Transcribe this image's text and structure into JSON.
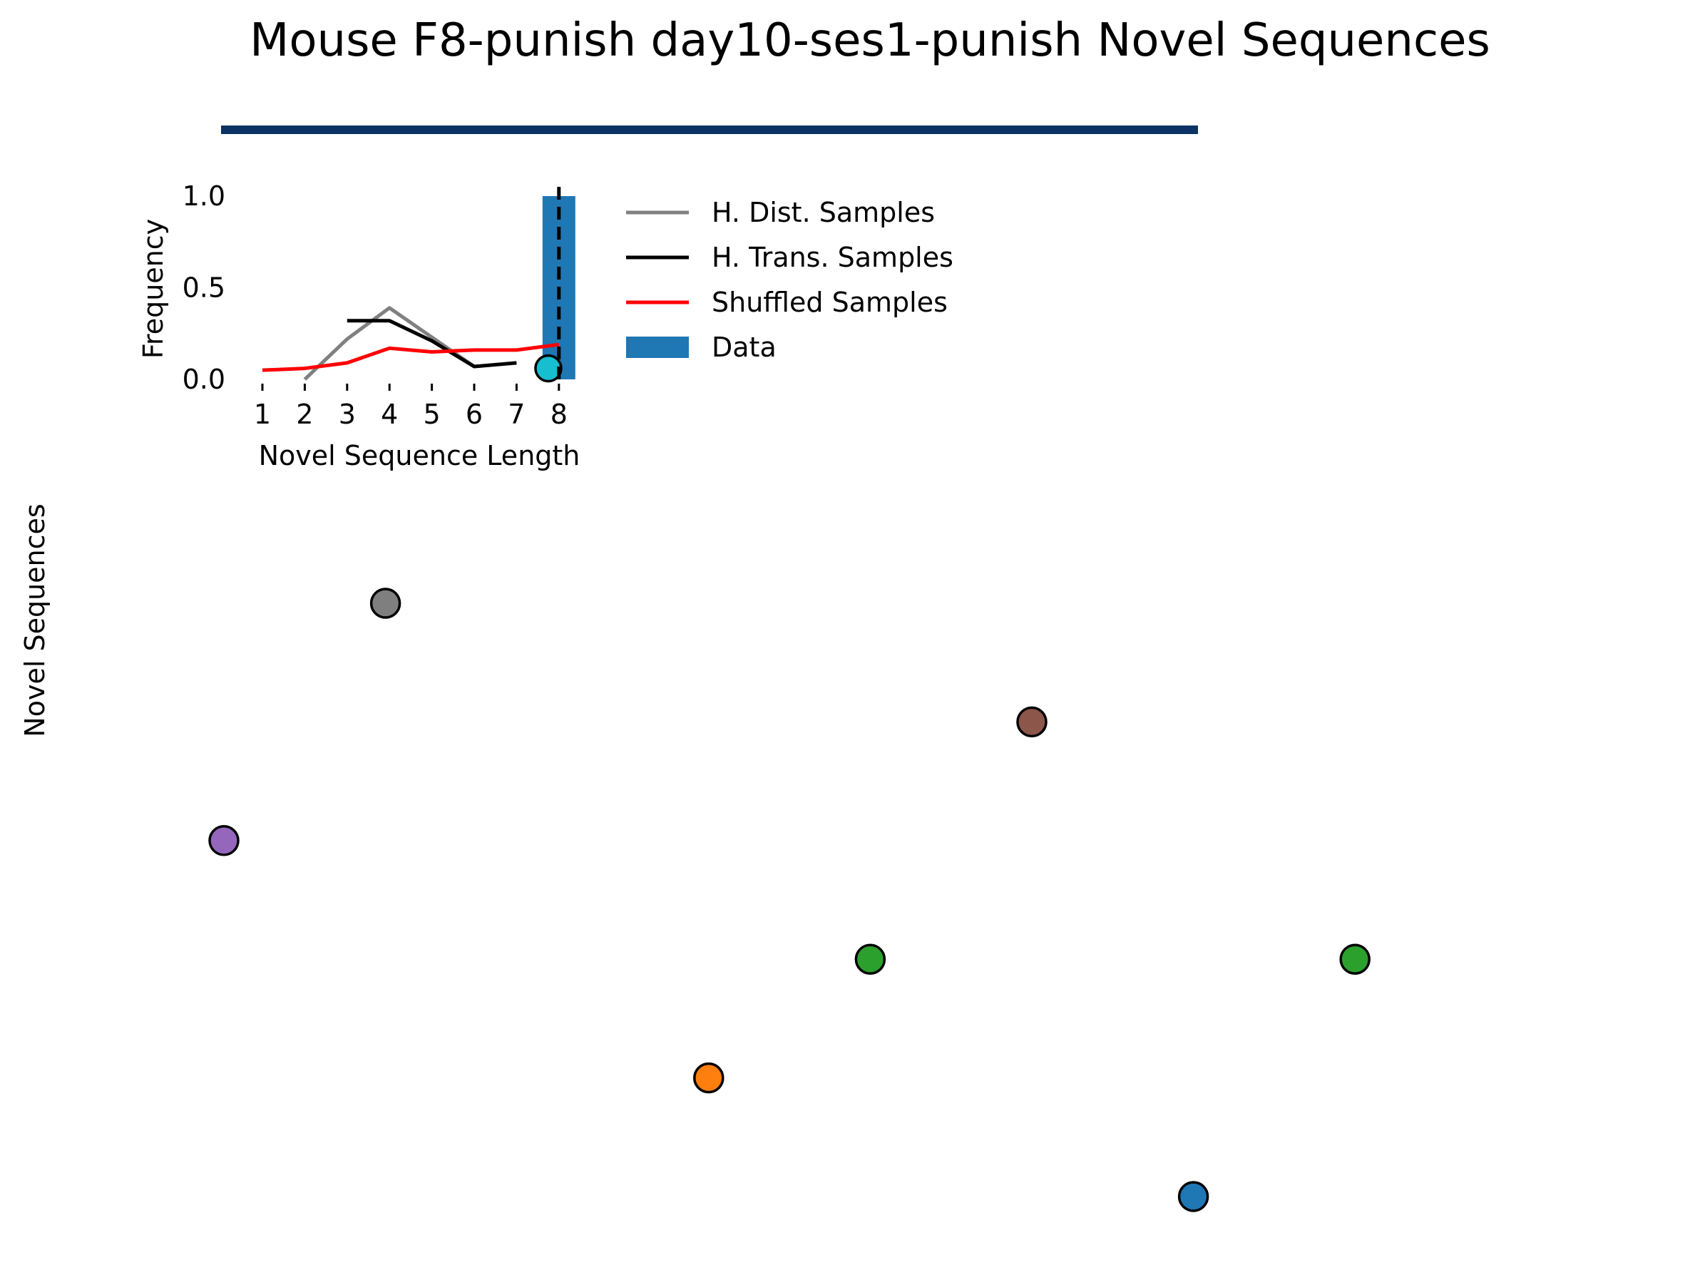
{
  "title": "Mouse F8-punish day10-ses1-punish Novel Sequences",
  "colors": {
    "title_bar": "#0b3363",
    "h_dist": "#808080",
    "h_trans": "#000000",
    "shuffled": "#ff0000",
    "data_bar": "#1f77b4",
    "cyan_marker": "#17becf"
  },
  "chart_data": [
    {
      "type": "line",
      "xlabel": "Novel Sequence Length",
      "ylabel": "Frequency",
      "x_ticks": [
        "1",
        "2",
        "3",
        "4",
        "5",
        "6",
        "7",
        "8"
      ],
      "y_ticks": [
        "0.0",
        "0.5",
        "1.0"
      ],
      "xlim": [
        0.5,
        8.4
      ],
      "ylim": [
        0.0,
        1.05
      ],
      "legend_position": "right",
      "series": [
        {
          "name": "H. Dist. Samples",
          "color": "#808080",
          "x": [
            2,
            3,
            4,
            5,
            6
          ],
          "y": [
            0.0,
            0.22,
            0.39,
            0.23,
            0.07
          ]
        },
        {
          "name": "H. Trans. Samples",
          "color": "#000000",
          "x": [
            3,
            4,
            5,
            6,
            7
          ],
          "y": [
            0.32,
            0.32,
            0.21,
            0.07,
            0.09
          ]
        },
        {
          "name": "Shuffled Samples",
          "color": "#ff0000",
          "x": [
            1,
            2,
            3,
            4,
            5,
            6,
            7,
            8
          ],
          "y": [
            0.05,
            0.06,
            0.09,
            0.17,
            0.15,
            0.16,
            0.16,
            0.19
          ]
        }
      ],
      "bars": [
        {
          "name": "Data",
          "x": 8,
          "value": 1.0,
          "color": "#1f77b4"
        }
      ],
      "vline": {
        "x": 8,
        "style": "dashed",
        "color": "#000000"
      },
      "marker": {
        "x": 7.75,
        "y": 0.06,
        "color": "#17becf"
      }
    },
    {
      "type": "scatter",
      "ylabel": "Novel Sequences",
      "xlim": [
        0,
        7
      ],
      "ylim": [
        0,
        6
      ],
      "axes_visible": false,
      "points": [
        {
          "x": 0,
          "y": 3,
          "color": "#9467bd"
        },
        {
          "x": 1,
          "y": 5,
          "color": "#7f7f7f"
        },
        {
          "x": 3,
          "y": 1,
          "color": "#ff7f0e"
        },
        {
          "x": 4,
          "y": 2,
          "color": "#2ca02c"
        },
        {
          "x": 5,
          "y": 4,
          "color": "#8c564b"
        },
        {
          "x": 6,
          "y": 0,
          "color": "#1f77b4"
        },
        {
          "x": 7,
          "y": 2,
          "color": "#2ca02c"
        }
      ]
    }
  ]
}
